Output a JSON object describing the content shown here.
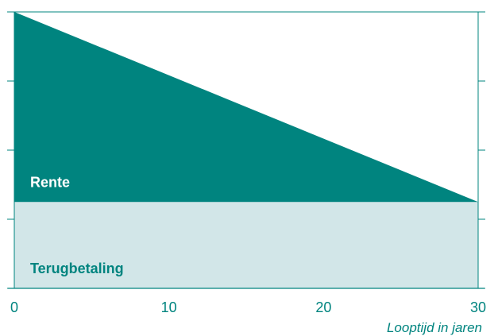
{
  "chart_data": {
    "type": "area",
    "xlabel": "Looptijd in jaren",
    "xlim": [
      0,
      30
    ],
    "x_ticks": [
      "0",
      "10",
      "20",
      "30"
    ],
    "ylim": [
      0,
      4
    ],
    "y_tick_count": 5,
    "grid": false,
    "series": [
      {
        "name": "Terugbetaling",
        "x": [
          0,
          30
        ],
        "values": [
          1.25,
          1.25
        ],
        "color": "#d2e6e8"
      },
      {
        "name": "Rente",
        "x": [
          0,
          30
        ],
        "values": [
          2.75,
          0
        ],
        "color": "#00847f"
      }
    ],
    "label_colors": {
      "Rente": "#ffffff",
      "Terugbetaling": "#00847f"
    },
    "axis_color": "#00847f"
  }
}
